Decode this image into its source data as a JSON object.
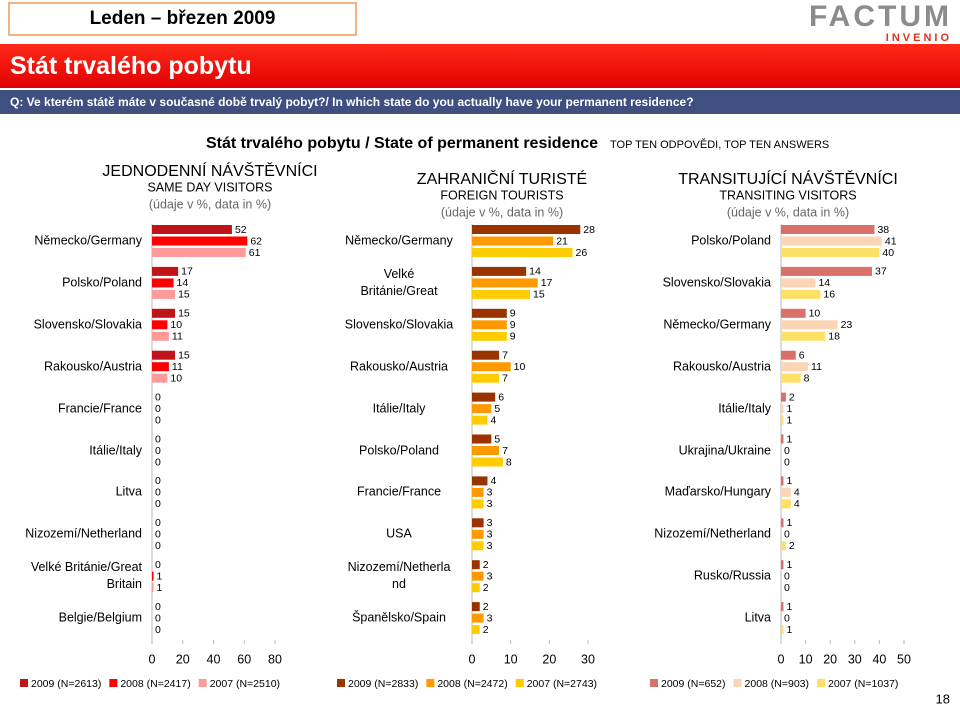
{
  "header": {
    "period": "Leden – březen 2009",
    "logo": "FACTUM",
    "logo_sub": "INVENIO",
    "banner": "Stát trvalého pobytu",
    "question": "Q: Ve kterém státě máte v současné době trvalý pobyt?/ In which state do you actually have your permanent residence?",
    "title": "Stát trvalého pobytu / State of permanent residence",
    "note": "TOP TEN ODPOVĚDI, TOP TEN ANSWERS",
    "page": "18"
  },
  "chart_data": [
    {
      "type": "hbar",
      "title": "JEDNODENNÍ NÁVŠTĚVNÍCI",
      "subtitle": "SAME DAY VISITORS",
      "unit_note": "(údaje v %, data in %)",
      "categories": [
        "Německo/Germany",
        "Polsko/Poland",
        "Slovensko/Slovakia",
        "Rakousko/Austria",
        "Francie/France",
        "Itálie/Italy",
        "Litva",
        "Nizozemí/Netherland",
        "Velké Británie/Great\nBritain",
        "Belgie/Belgium"
      ],
      "series": [
        {
          "name": "2009 (N=2613)",
          "color": "#c0141b",
          "values": [
            52,
            17,
            15,
            15,
            0,
            0,
            0,
            0,
            0,
            0
          ]
        },
        {
          "name": "2008 (N=2417)",
          "color": "#ff0000",
          "values": [
            62,
            14,
            10,
            11,
            0,
            0,
            0,
            0,
            1,
            0
          ]
        },
        {
          "name": "2007 (N=2510)",
          "color": "#ff9a9a",
          "values": [
            61,
            15,
            11,
            10,
            0,
            0,
            0,
            0,
            1,
            0
          ]
        }
      ],
      "xlim": [
        0,
        80
      ],
      "xticks": [
        0,
        20,
        40,
        60,
        80
      ]
    },
    {
      "type": "hbar",
      "title": "ZAHRANIČNÍ TURISTÉ",
      "subtitle": "FOREIGN TOURISTS",
      "unit_note": "(údaje v %, data in %)",
      "categories": [
        "Německo/Germany",
        "Velké\nBritánie/Great",
        "Slovensko/Slovakia",
        "Rakousko/Austria",
        "Itálie/Italy",
        "Polsko/Poland",
        "Francie/France",
        "USA",
        "Nizozemí/Netherla\nnd",
        "Španělsko/Spain"
      ],
      "series": [
        {
          "name": "2009 (N=2833)",
          "color": "#993300",
          "values": [
            28,
            14,
            9,
            7,
            6,
            5,
            4,
            3,
            2,
            2
          ]
        },
        {
          "name": "2008 (N=2472)",
          "color": "#ff9900",
          "values": [
            21,
            17,
            9,
            10,
            5,
            7,
            3,
            3,
            3,
            3
          ]
        },
        {
          "name": "2007 (N=2743)",
          "color": "#ffcc00",
          "values": [
            26,
            15,
            9,
            7,
            4,
            8,
            3,
            3,
            2,
            2
          ]
        }
      ],
      "xlim": [
        0,
        30
      ],
      "xticks": [
        0,
        10,
        20,
        30
      ]
    },
    {
      "type": "hbar",
      "title": "TRANSITUJÍCÍ NÁVŠTĚVNÍCI",
      "subtitle": "TRANSITING VISITORS",
      "unit_note": "(údaje v %, data in %)",
      "categories": [
        "Polsko/Poland",
        "Slovensko/Slovakia",
        "Německo/Germany",
        "Rakousko/Austria",
        "Itálie/Italy",
        "Ukrajina/Ukraine",
        "Maďarsko/Hungary",
        "Nizozemí/Netherland",
        "Rusko/Russia",
        "Litva"
      ],
      "series": [
        {
          "name": "2009 (N=652)",
          "color": "#d9706a",
          "values": [
            38,
            37,
            10,
            6,
            2,
            1,
            1,
            1,
            1,
            1
          ]
        },
        {
          "name": "2008 (N=903)",
          "color": "#fcd5b4",
          "values": [
            41,
            14,
            23,
            11,
            1,
            0,
            4,
            0,
            0,
            0
          ]
        },
        {
          "name": "2007 (N=1037)",
          "color": "#ffe066",
          "values": [
            40,
            16,
            18,
            8,
            1,
            0,
            4,
            2,
            0,
            1
          ]
        }
      ],
      "xlim": [
        0,
        50
      ],
      "xticks": [
        0,
        10,
        20,
        30,
        40,
        50
      ]
    }
  ]
}
